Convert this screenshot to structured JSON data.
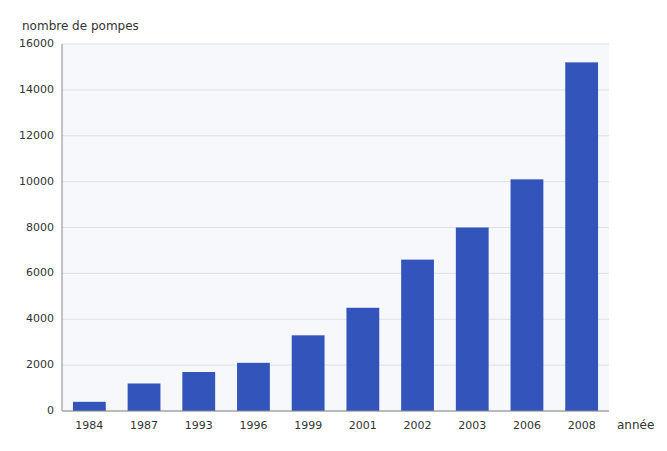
{
  "chart_data": {
    "type": "bar",
    "categories": [
      "1984",
      "1987",
      "1993",
      "1996",
      "1999",
      "2001",
      "2002",
      "2003",
      "2006",
      "2008"
    ],
    "values": [
      400,
      1200,
      1700,
      2100,
      3300,
      4500,
      6600,
      8000,
      10100,
      15200
    ],
    "color": "#3355bb",
    "ylabel": "nombre de pompes",
    "xlabel": "année",
    "ylim": [
      0,
      16000
    ],
    "yticks": [
      0,
      2000,
      4000,
      6000,
      8000,
      10000,
      12000,
      14000,
      16000
    ],
    "grid": true
  }
}
